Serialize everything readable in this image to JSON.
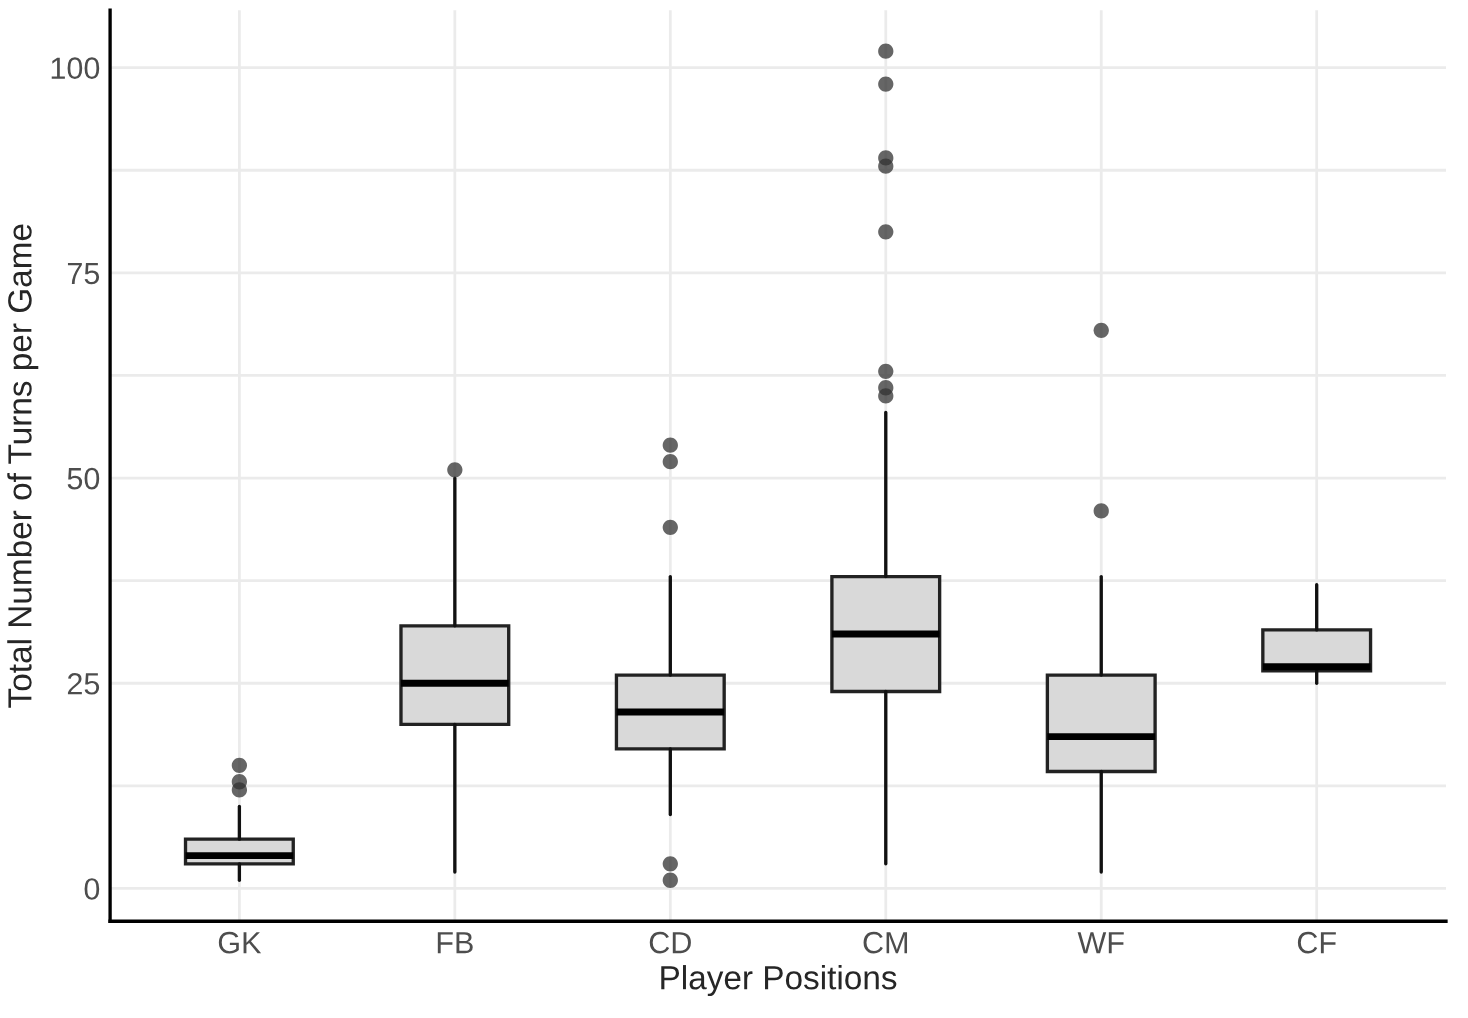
{
  "chart_data": {
    "type": "box",
    "xlabel": "Player Positions",
    "ylabel": "Total Number of Turns per Game",
    "categories": [
      "GK",
      "FB",
      "CD",
      "CM",
      "WF",
      "CF"
    ],
    "boxes": [
      {
        "low": 1,
        "q1": 3,
        "median": 4,
        "q3": 6,
        "high": 10,
        "outliers": [
          15,
          13,
          12
        ]
      },
      {
        "low": 2,
        "q1": 20,
        "median": 25,
        "q3": 32,
        "high": 50,
        "outliers": [
          51
        ]
      },
      {
        "low": 9,
        "q1": 17,
        "median": 21.5,
        "q3": 26,
        "high": 38,
        "outliers": [
          54,
          52,
          44,
          3,
          1
        ]
      },
      {
        "low": 3,
        "q1": 24,
        "median": 31,
        "q3": 38,
        "high": 58,
        "outliers": [
          102,
          98,
          89,
          88,
          80,
          63,
          61,
          60
        ]
      },
      {
        "low": 2,
        "q1": 14.25,
        "median": 18.5,
        "q3": 26,
        "high": 38,
        "outliers": [
          68,
          46
        ]
      },
      {
        "low": 25,
        "q1": 26.5,
        "median": 27,
        "q3": 31.5,
        "high": 37
      }
    ],
    "color": "#d9d9d9",
    "ylim": [
      -4,
      107
    ],
    "yticks": [
      0,
      {
        "value": 12.5,
        "label": null
      },
      25,
      {
        "value": 37.5,
        "label": null
      },
      50,
      {
        "value": 62.5,
        "label": null
      },
      75,
      {
        "value": 87.5,
        "label": null
      },
      100
    ],
    "grid": true
  }
}
